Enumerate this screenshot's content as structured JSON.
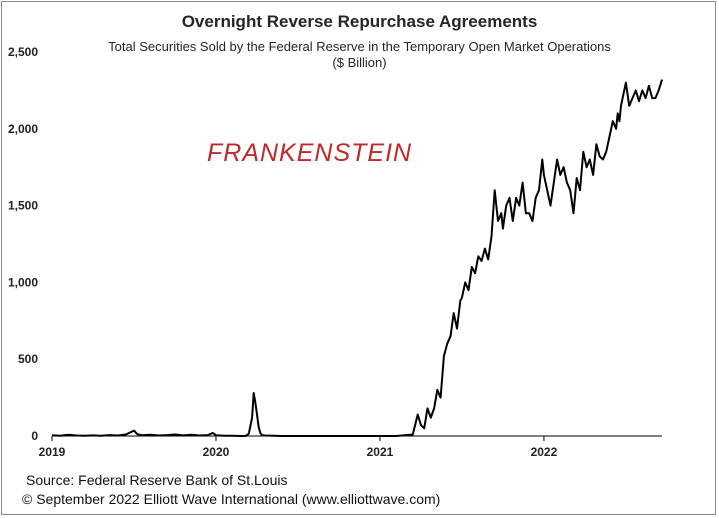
{
  "chart_data": {
    "type": "line",
    "title": "Overnight Reverse Repurchase Agreements",
    "subtitle": "Total Securities Sold by the Federal Reserve in the Temporary Open Market Operations",
    "unit": "($ Billion)",
    "annotation": "FRANKENSTEIN",
    "ylim": [
      0,
      2500
    ],
    "y_ticks": [
      "2,500",
      "2,000",
      "1,500",
      "1,000",
      "500",
      "0"
    ],
    "y_tick_values": [
      2500,
      2000,
      1500,
      1000,
      500,
      0
    ],
    "xlim": [
      2019.0,
      2022.72
    ],
    "x_ticks": [
      "2019",
      "2020",
      "2021",
      "2022"
    ],
    "x_tick_values": [
      2019,
      2020,
      2021,
      2022
    ],
    "grid": false,
    "line_color": "#000000",
    "series": [
      {
        "x": [
          2019.0,
          2019.05,
          2019.1,
          2019.15,
          2019.2,
          2019.25,
          2019.3,
          2019.35,
          2019.4,
          2019.45,
          2019.48,
          2019.5,
          2019.52,
          2019.55,
          2019.6,
          2019.65,
          2019.7,
          2019.75,
          2019.8,
          2019.85,
          2019.9,
          2019.95,
          2019.98,
          2020.0,
          2020.05,
          2020.1,
          2020.15,
          2020.18,
          2020.2,
          2020.22,
          2020.23,
          2020.24,
          2020.25,
          2020.26,
          2020.27,
          2020.28,
          2020.3,
          2020.35,
          2020.4,
          2020.5,
          2020.6,
          2020.7,
          2020.8,
          2020.9,
          2021.0,
          2021.1,
          2021.15,
          2021.2,
          2021.23,
          2021.25,
          2021.27,
          2021.29,
          2021.31,
          2021.33,
          2021.35,
          2021.37,
          2021.39,
          2021.41,
          2021.43,
          2021.45,
          2021.47,
          2021.49,
          2021.5,
          2021.52,
          2021.54,
          2021.56,
          2021.58,
          2021.6,
          2021.62,
          2021.64,
          2021.66,
          2021.68,
          2021.7,
          2021.72,
          2021.74,
          2021.75,
          2021.77,
          2021.79,
          2021.81,
          2021.83,
          2021.85,
          2021.87,
          2021.89,
          2021.91,
          2021.93,
          2021.95,
          2021.97,
          2021.99,
          2022.0,
          2022.02,
          2022.04,
          2022.06,
          2022.08,
          2022.1,
          2022.12,
          2022.14,
          2022.16,
          2022.18,
          2022.2,
          2022.22,
          2022.24,
          2022.26,
          2022.28,
          2022.3,
          2022.32,
          2022.34,
          2022.36,
          2022.38,
          2022.4,
          2022.42,
          2022.44,
          2022.45,
          2022.46,
          2022.47,
          2022.48,
          2022.5,
          2022.52,
          2022.54,
          2022.56,
          2022.58,
          2022.6,
          2022.62,
          2022.64,
          2022.66,
          2022.68,
          2022.7,
          2022.72
        ],
        "values": [
          5,
          2,
          8,
          3,
          1,
          4,
          2,
          6,
          3,
          10,
          25,
          35,
          12,
          5,
          8,
          3,
          6,
          10,
          4,
          8,
          3,
          6,
          20,
          5,
          2,
          1,
          0,
          0,
          15,
          120,
          280,
          220,
          140,
          60,
          20,
          5,
          3,
          1,
          0,
          0,
          0,
          0,
          0,
          0,
          0,
          0,
          5,
          10,
          140,
          70,
          50,
          180,
          120,
          180,
          300,
          250,
          520,
          600,
          650,
          800,
          700,
          880,
          900,
          1000,
          950,
          1100,
          1060,
          1170,
          1140,
          1220,
          1150,
          1300,
          1600,
          1400,
          1450,
          1350,
          1500,
          1550,
          1400,
          1550,
          1500,
          1650,
          1450,
          1450,
          1400,
          1550,
          1600,
          1800,
          1700,
          1600,
          1500,
          1650,
          1800,
          1700,
          1750,
          1650,
          1600,
          1450,
          1680,
          1600,
          1850,
          1750,
          1800,
          1700,
          1900,
          1820,
          1800,
          1850,
          1950,
          2050,
          2000,
          2100,
          2050,
          2150,
          2200,
          2300,
          2150,
          2200,
          2250,
          2180,
          2250,
          2200,
          2280,
          2200,
          2200,
          2250,
          2320
        ]
      }
    ]
  },
  "footer": {
    "source": "Source: Federal Reserve Bank of St.Louis",
    "copyright": "© September 2022 Elliott Wave International (www.elliottwave.com)"
  }
}
